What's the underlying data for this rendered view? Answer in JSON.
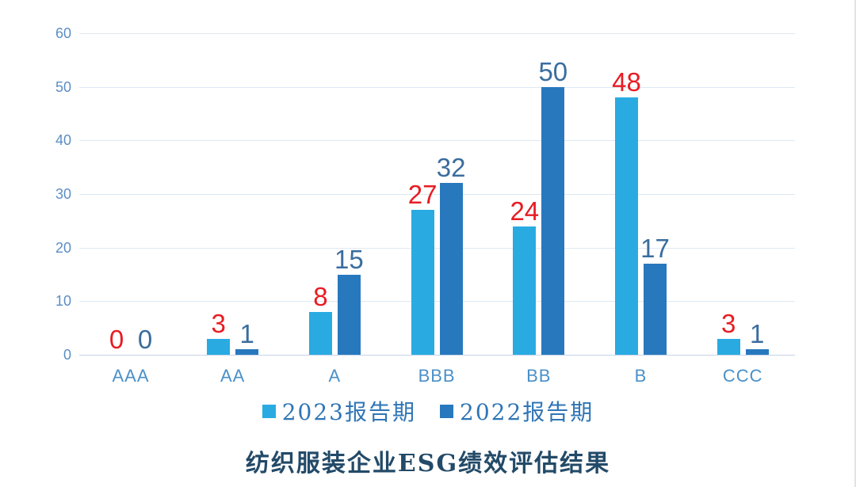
{
  "chart_data": {
    "type": "bar",
    "title": "纺织服装企业ESG绩效评估结果",
    "categories": [
      "AAA",
      "AA",
      "A",
      "BBB",
      "BB",
      "B",
      "CCC"
    ],
    "series": [
      {
        "name": "2023报告期",
        "color": "#29abe2",
        "label_color": "#e81c24",
        "values": [
          0,
          3,
          8,
          27,
          24,
          48,
          3
        ]
      },
      {
        "name": "2022报告期",
        "color": "#2878be",
        "label_color": "#3a6d9e",
        "values": [
          0,
          1,
          15,
          32,
          50,
          17,
          1
        ]
      }
    ],
    "xlabel": "",
    "ylabel": "",
    "ylim": [
      0,
      60
    ],
    "yticks": [
      0,
      10,
      20,
      30,
      40,
      50,
      60
    ],
    "grid": true,
    "legend_position": "bottom",
    "data_labels": true
  },
  "colors": {
    "gridline": "#dde7f2",
    "zero_line": "#c6d4e6",
    "y_tick_label": "#5b8ec4",
    "category_label": "#4a90c8",
    "legend_text": "#2e75b6",
    "title_text": "#234a68",
    "background": "#ffffff"
  }
}
